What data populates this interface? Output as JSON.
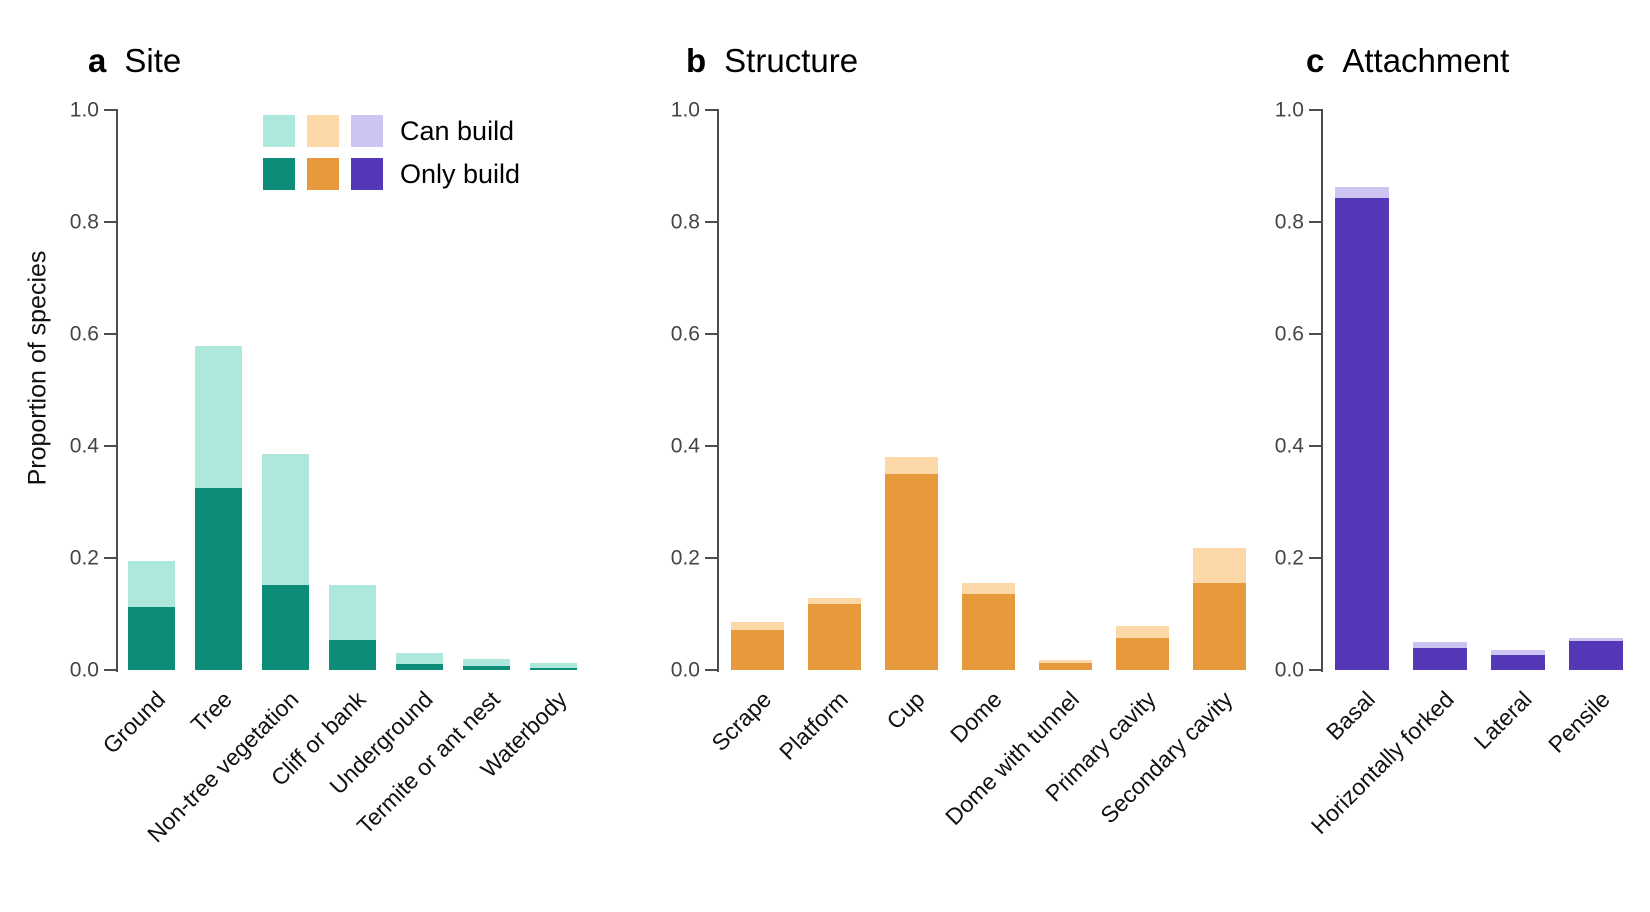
{
  "figure": {
    "ylabel": "Proportion of species"
  },
  "legend": {
    "can_label": "Can build",
    "only_label": "Only build"
  },
  "colors": {
    "axis_gray": "#4d4d4d",
    "teal": {
      "light": "#aee7db",
      "dark": "#0d8c77"
    },
    "orange": {
      "light": "#fcd8a8",
      "dark": "#e69a3c"
    },
    "purple": {
      "light": "#cdc4f2",
      "dark": "#5438b8"
    }
  },
  "chart_data": [
    {
      "type": "bar",
      "panel_letter": "a",
      "title": "Site",
      "ylabel": "Proportion of species",
      "ylim": [
        0,
        1.0
      ],
      "yticks": [
        0.0,
        0.2,
        0.4,
        0.6,
        0.8,
        1.0
      ],
      "grid": false,
      "legend_position": "top-left of panel a",
      "color_key": "teal",
      "categories": [
        "Ground",
        "Tree",
        "Non-tree vegetation",
        "Cliff or bank",
        "Underground",
        "Termite or ant nest",
        "Waterbody"
      ],
      "series": [
        {
          "name": "Can build",
          "values": [
            0.195,
            0.578,
            0.386,
            0.152,
            0.03,
            0.02,
            0.012
          ]
        },
        {
          "name": "Only build",
          "values": [
            0.112,
            0.325,
            0.152,
            0.053,
            0.01,
            0.008,
            0.004
          ]
        }
      ]
    },
    {
      "type": "bar",
      "panel_letter": "b",
      "title": "Structure",
      "ylim": [
        0,
        1.0
      ],
      "yticks": [
        0.0,
        0.2,
        0.4,
        0.6,
        0.8,
        1.0
      ],
      "grid": false,
      "color_key": "orange",
      "categories": [
        "Scrape",
        "Platform",
        "Cup",
        "Dome",
        "Dome with tunnel",
        "Primary cavity",
        "Secondary cavity"
      ],
      "series": [
        {
          "name": "Can build",
          "values": [
            0.085,
            0.128,
            0.38,
            0.155,
            0.017,
            0.079,
            0.218
          ]
        },
        {
          "name": "Only build",
          "values": [
            0.071,
            0.118,
            0.35,
            0.135,
            0.013,
            0.058,
            0.156
          ]
        }
      ]
    },
    {
      "type": "bar",
      "panel_letter": "c",
      "title": "Attachment",
      "ylim": [
        0,
        1.0
      ],
      "yticks": [
        0.0,
        0.2,
        0.4,
        0.6,
        0.8,
        1.0
      ],
      "grid": false,
      "color_key": "purple",
      "categories": [
        "Basal",
        "Horizontally forked",
        "Lateral",
        "Pensile"
      ],
      "series": [
        {
          "name": "Can build",
          "values": [
            0.863,
            0.05,
            0.035,
            0.058
          ]
        },
        {
          "name": "Only build",
          "values": [
            0.843,
            0.04,
            0.026,
            0.051
          ]
        }
      ]
    }
  ]
}
